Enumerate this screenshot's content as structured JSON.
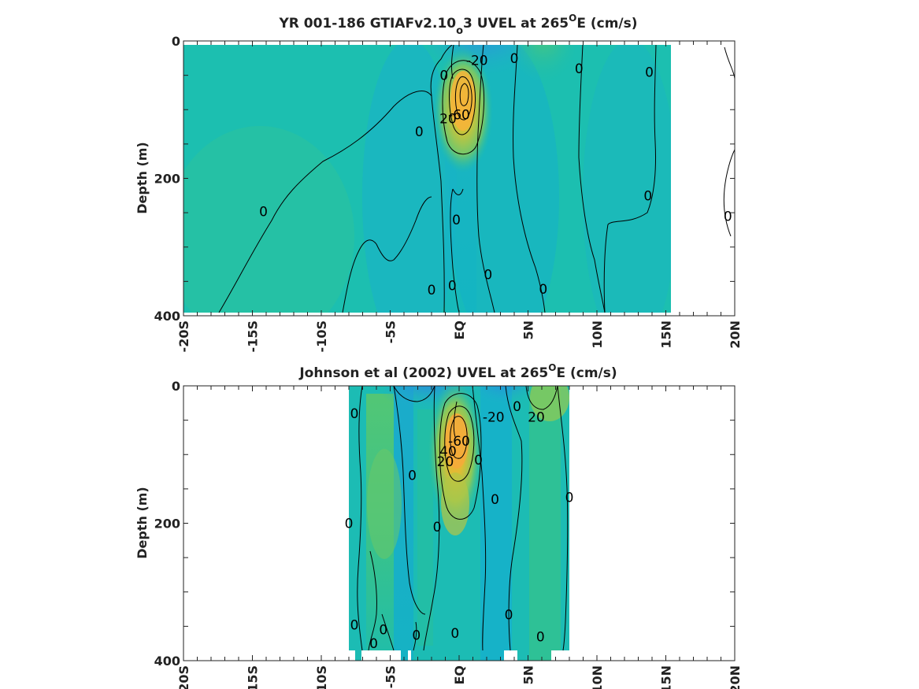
{
  "chart_data": [
    {
      "type": "heatmap",
      "title_main": "YR 001-186 GTIAFv2.10",
      "title_sub": "o",
      "title_tail": "3 UVEL at 265",
      "title_deg": "O",
      "title_end": "E (cm/s)",
      "ylabel": "Depth (m)",
      "xlim": [
        -20,
        20
      ],
      "ylim": [
        0,
        400
      ],
      "xticks": [
        "-20S",
        "-15S",
        "-10S",
        "-5S",
        "EQ",
        "5N",
        "10N",
        "15N",
        "20N"
      ],
      "xtick_values": [
        -20,
        -15,
        -10,
        -5,
        0,
        5,
        10,
        15,
        20
      ],
      "yticks": [
        "0",
        "200",
        "400"
      ],
      "ytick_values": [
        0,
        200,
        400
      ],
      "contour_labels": [
        {
          "text": "-20",
          "lat": 1.3,
          "depth": 28
        },
        {
          "text": "0",
          "lat": 4.0,
          "depth": 25
        },
        {
          "text": "0",
          "lat": 8.7,
          "depth": 40
        },
        {
          "text": "0",
          "lat": 13.8,
          "depth": 45
        },
        {
          "text": "0",
          "lat": -1.1,
          "depth": 50
        },
        {
          "text": "-60",
          "lat": 0.0,
          "depth": 107
        },
        {
          "text": "20",
          "lat": -0.8,
          "depth": 113
        },
        {
          "text": "0",
          "lat": -2.9,
          "depth": 132
        },
        {
          "text": "0",
          "lat": -14.2,
          "depth": 248
        },
        {
          "text": "0",
          "lat": 13.7,
          "depth": 225
        },
        {
          "text": "0",
          "lat": 19.5,
          "depth": 255
        },
        {
          "text": "0",
          "lat": -0.2,
          "depth": 260
        },
        {
          "text": "0",
          "lat": 2.1,
          "depth": 340
        },
        {
          "text": "0",
          "lat": -2.0,
          "depth": 362
        },
        {
          "text": "0",
          "lat": -0.5,
          "depth": 356
        },
        {
          "text": "0",
          "lat": 6.1,
          "depth": 361
        }
      ],
      "colorscale": "parula",
      "missing_regions": "15.5N–20N mostly no data"
    },
    {
      "type": "heatmap",
      "title_main": "Johnson et al (2002) UVEL at 265",
      "title_deg": "O",
      "title_end": "E (cm/s)",
      "ylabel": "Depth (m)",
      "xlim": [
        -20,
        20
      ],
      "ylim": [
        0,
        400
      ],
      "xticks": [
        "-20S",
        "-15S",
        "-10S",
        "-5S",
        "EQ",
        "5N",
        "10N",
        "15N",
        "20N"
      ],
      "xtick_values": [
        -20,
        -15,
        -10,
        -5,
        0,
        5,
        10,
        15,
        20
      ],
      "yticks": [
        "0",
        "200",
        "400"
      ],
      "ytick_values": [
        0,
        200,
        400
      ],
      "data_lat_range": [
        -8,
        8
      ],
      "contour_labels": [
        {
          "text": "0",
          "lat": -7.6,
          "depth": 40
        },
        {
          "text": "-20",
          "lat": 2.5,
          "depth": 45
        },
        {
          "text": "0",
          "lat": 4.2,
          "depth": 30
        },
        {
          "text": "20",
          "lat": 5.6,
          "depth": 45
        },
        {
          "text": "-60",
          "lat": 0.0,
          "depth": 80
        },
        {
          "text": "40",
          "lat": -0.8,
          "depth": 95
        },
        {
          "text": "20",
          "lat": -1.0,
          "depth": 110
        },
        {
          "text": "0",
          "lat": 1.4,
          "depth": 108
        },
        {
          "text": "0",
          "lat": -3.4,
          "depth": 130
        },
        {
          "text": "0",
          "lat": 2.6,
          "depth": 165
        },
        {
          "text": "0",
          "lat": 8.0,
          "depth": 162
        },
        {
          "text": "0",
          "lat": -8.0,
          "depth": 200
        },
        {
          "text": "0",
          "lat": -1.6,
          "depth": 205
        },
        {
          "text": "0",
          "lat": -7.6,
          "depth": 348
        },
        {
          "text": "0",
          "lat": 3.6,
          "depth": 333
        },
        {
          "text": "0",
          "lat": -5.5,
          "depth": 355
        },
        {
          "text": "0",
          "lat": -6.2,
          "depth": 375
        },
        {
          "text": "0",
          "lat": -3.1,
          "depth": 363
        },
        {
          "text": "0",
          "lat": -0.3,
          "depth": 360
        },
        {
          "text": "0",
          "lat": 5.9,
          "depth": 365
        }
      ],
      "colorscale": "parula"
    }
  ]
}
